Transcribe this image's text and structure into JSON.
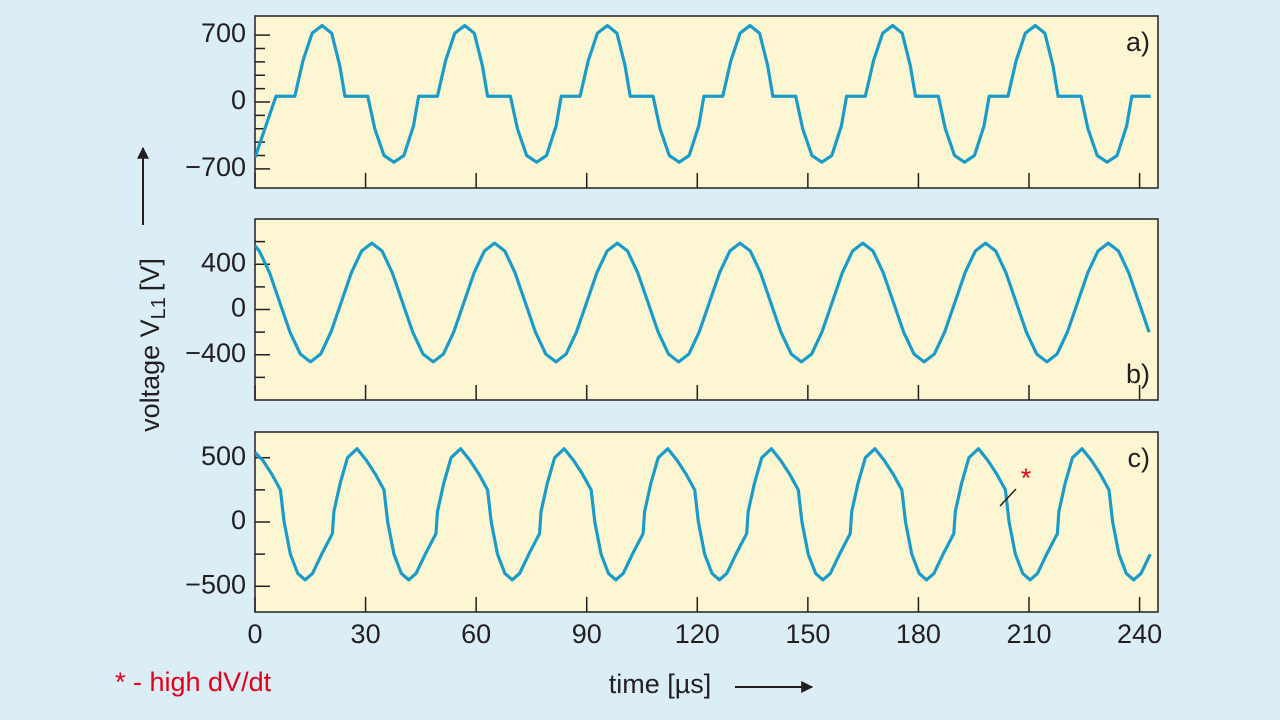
{
  "ylabel": {
    "text": "voltage V",
    "subscript": "L1",
    "unit": "[V]"
  },
  "xlabel": "time [µs]",
  "footnote": "* - high dV/dt",
  "annotation": "*",
  "chart_data": [
    {
      "type": "line",
      "title": "a)",
      "color": "#1b9bc9",
      "xlim": [
        0,
        245
      ],
      "xticks": [
        0,
        30,
        60,
        90,
        120,
        150,
        180,
        210,
        240
      ],
      "ylim": [
        -900,
        900
      ],
      "yticks": [
        700,
        0,
        {
          "value": -700,
          "label": "−700"
        }
      ],
      "yminor": [
        -560,
        -420,
        -280,
        -140,
        140,
        280,
        420,
        560
      ],
      "x": [
        0,
        5.7,
        10.8,
        13,
        15.5,
        18.2,
        20.8,
        23,
        24.4,
        30.6,
        32.5,
        35,
        37.7,
        40.4,
        43,
        44.4,
        49.5,
        51.7,
        54.2,
        56.9,
        59.5,
        61.7,
        63.1,
        69.3,
        71.2,
        73.7,
        76.4,
        79.1,
        81.7,
        83.1,
        88.2,
        90.4,
        92.9,
        95.6,
        98.2,
        100.4,
        101.8,
        108,
        109.9,
        112.4,
        115.1,
        117.8,
        120.4,
        121.8,
        126.9,
        129.1,
        131.6,
        134.3,
        136.9,
        139.1,
        140.5,
        146.7,
        148.6,
        151.1,
        153.8,
        156.5,
        159.1,
        160.5,
        165.6,
        167.8,
        170.3,
        173,
        175.6,
        177.8,
        179.2,
        185.4,
        187.3,
        189.8,
        192.5,
        195.2,
        197.8,
        199.2,
        204.3,
        206.5,
        209,
        211.7,
        214.3,
        216.5,
        217.9,
        224.1,
        226,
        228.5,
        231.2,
        233.9,
        236.5,
        237.9,
        243
      ],
      "values": [
        -580,
        60,
        60,
        430,
        720,
        800,
        720,
        380,
        60,
        60,
        -280,
        -560,
        -630,
        -560,
        -250,
        60,
        60,
        430,
        720,
        800,
        720,
        380,
        60,
        60,
        -280,
        -560,
        -630,
        -560,
        -250,
        60,
        60,
        430,
        720,
        800,
        720,
        380,
        60,
        60,
        -280,
        -560,
        -630,
        -560,
        -250,
        60,
        60,
        430,
        720,
        800,
        720,
        380,
        60,
        60,
        -280,
        -560,
        -630,
        -560,
        -250,
        60,
        60,
        430,
        720,
        800,
        720,
        380,
        60,
        60,
        -280,
        -560,
        -630,
        -560,
        -250,
        60,
        60,
        430,
        720,
        800,
        720,
        380,
        60,
        60,
        -280,
        -560,
        -630,
        -560,
        -250,
        60,
        60
      ]
    },
    {
      "type": "line",
      "title": "b)",
      "color": "#1b9bc9",
      "xlim": [
        0,
        245
      ],
      "xticks": [
        0,
        30,
        60,
        90,
        120,
        150,
        180,
        210,
        240
      ],
      "ylim": [
        -800,
        800
      ],
      "yticks": [
        400,
        0,
        {
          "value": -400,
          "label": "−400"
        }
      ],
      "yminor": [
        -600,
        -200,
        200,
        600
      ],
      "x": [
        0,
        1.18,
        3.95,
        6.73,
        9.5,
        12.28,
        15.05,
        17.83,
        20.6,
        23.38,
        26.15,
        28.93,
        31.7,
        34.48,
        37.25,
        40.03,
        42.8,
        45.58,
        48.35,
        51.13,
        53.9,
        56.68,
        59.45,
        62.23,
        65,
        67.78,
        70.55,
        73.33,
        76.1,
        78.88,
        81.65,
        84.43,
        87.2,
        89.98,
        92.75,
        95.53,
        98.3,
        101.08,
        103.85,
        106.63,
        109.4,
        112.18,
        114.95,
        117.73,
        120.5,
        123.28,
        126.05,
        128.83,
        131.6,
        134.38,
        137.15,
        139.93,
        142.7,
        145.48,
        148.25,
        151.03,
        153.8,
        156.58,
        159.35,
        162.13,
        164.9,
        167.68,
        170.45,
        173.23,
        176,
        178.78,
        181.55,
        184.33,
        187.1,
        189.88,
        192.65,
        195.43,
        198.2,
        200.98,
        203.75,
        206.53,
        209.3,
        212.08,
        214.85,
        217.63,
        220.4,
        223.18,
        225.95,
        228.73,
        231.5,
        234.28,
        237.05,
        239.83,
        242.6
      ],
      "values": [
        563,
        517,
        325,
        62,
        -201,
        -393,
        -463,
        -393,
        -201,
        62,
        325,
        517,
        587,
        517,
        325,
        62,
        -201,
        -393,
        -463,
        -393,
        -201,
        62,
        325,
        517,
        587,
        517,
        325,
        62,
        -201,
        -393,
        -463,
        -393,
        -201,
        62,
        325,
        517,
        587,
        517,
        325,
        62,
        -201,
        -393,
        -463,
        -393,
        -201,
        62,
        325,
        517,
        587,
        517,
        325,
        62,
        -201,
        -393,
        -463,
        -393,
        -201,
        62,
        325,
        517,
        587,
        517,
        325,
        62,
        -201,
        -393,
        -463,
        -393,
        -201,
        62,
        325,
        517,
        587,
        517,
        325,
        62,
        -201,
        -393,
        -463,
        -393,
        -201,
        62,
        325,
        517,
        587,
        517,
        325,
        62,
        -201
      ]
    },
    {
      "type": "line",
      "title": "c)",
      "color": "#1b9bc9",
      "xlim": [
        0,
        245
      ],
      "xticks": [
        0,
        30,
        60,
        90,
        120,
        150,
        180,
        210,
        240
      ],
      "ylim": [
        -700,
        700
      ],
      "yticks": [
        500,
        0,
        {
          "value": -500,
          "label": "−500"
        }
      ],
      "yminor": [
        -250,
        250
      ],
      "x": [
        0,
        2.1,
        4.6,
        6.9,
        7.9,
        9.6,
        11.6,
        13.6,
        15.6,
        18.1,
        21,
        21.4,
        23.1,
        25.1,
        27.7,
        30.2,
        32.7,
        35,
        36,
        37.7,
        39.7,
        41.7,
        43.7,
        46.2,
        49.1,
        49.5,
        51.2,
        53.2,
        55.8,
        58.3,
        60.8,
        63.1,
        64.1,
        65.8,
        67.8,
        69.8,
        71.8,
        74.3,
        77.2,
        77.6,
        79.3,
        81.3,
        83.9,
        86.4,
        88.9,
        91.2,
        92.2,
        93.9,
        95.9,
        97.9,
        99.9,
        102.4,
        105.3,
        105.7,
        107.4,
        109.4,
        112,
        114.5,
        117,
        119.3,
        120.3,
        122,
        124,
        126,
        128,
        130.5,
        133.4,
        133.8,
        135.5,
        137.5,
        140.1,
        142.6,
        145.1,
        147.4,
        148.4,
        150.1,
        152.1,
        154.1,
        156.1,
        158.6,
        161.5,
        161.9,
        163.6,
        165.6,
        168.2,
        170.7,
        173.2,
        175.5,
        176.5,
        178.2,
        180.2,
        182.2,
        184.2,
        186.7,
        189.6,
        190,
        191.7,
        193.7,
        196.3,
        198.8,
        201.3,
        203.6,
        204.6,
        206.3,
        208.3,
        210.3,
        212.3,
        214.8,
        217.7,
        218.1,
        219.8,
        221.8,
        224.4,
        226.9,
        229.4,
        231.7,
        232.7,
        234.4,
        236.4,
        238.4,
        240.4,
        242.9
      ],
      "values": [
        540,
        480,
        370,
        250,
        0,
        -250,
        -400,
        -450,
        -400,
        -250,
        -90,
        80,
        300,
        500,
        570,
        480,
        370,
        250,
        0,
        -250,
        -400,
        -450,
        -400,
        -250,
        -90,
        80,
        300,
        500,
        570,
        480,
        370,
        250,
        0,
        -250,
        -400,
        -450,
        -400,
        -250,
        -90,
        80,
        300,
        500,
        570,
        480,
        370,
        250,
        0,
        -250,
        -400,
        -450,
        -400,
        -250,
        -90,
        80,
        300,
        500,
        570,
        480,
        370,
        250,
        0,
        -250,
        -400,
        -450,
        -400,
        -250,
        -90,
        80,
        300,
        500,
        570,
        480,
        370,
        250,
        0,
        -250,
        -400,
        -450,
        -400,
        -250,
        -90,
        80,
        300,
        500,
        570,
        480,
        370,
        250,
        0,
        -250,
        -400,
        -450,
        -400,
        -250,
        -90,
        80,
        300,
        500,
        570,
        480,
        370,
        250,
        0,
        -250,
        -400,
        -450,
        -400,
        -250,
        -90,
        80,
        300,
        500,
        570,
        480,
        370,
        250,
        0,
        -250,
        -400,
        -450,
        -400,
        -250
      ]
    }
  ]
}
